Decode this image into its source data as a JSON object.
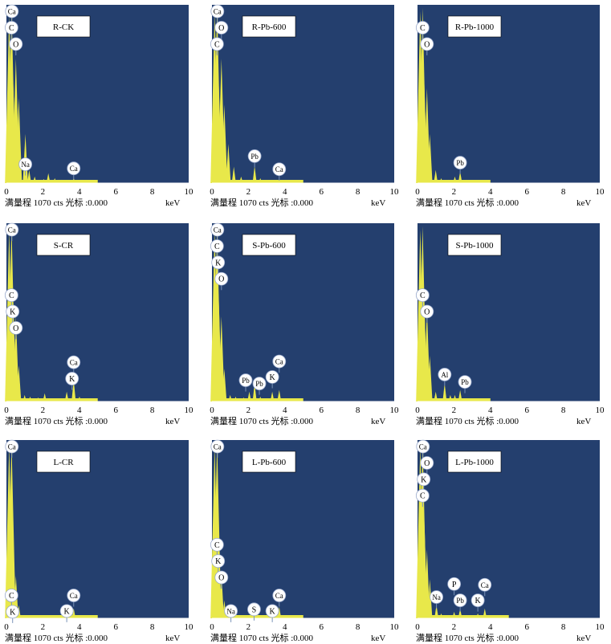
{
  "common": {
    "xlabel": "keV",
    "xlim": [
      0,
      10
    ],
    "xticks": [
      0,
      2,
      4,
      6,
      8,
      10
    ],
    "footer": "满量程 1070 cts  光标 :0.000",
    "full_scale_cts": 1070,
    "cursor": "0.000",
    "colors": {
      "background": "#243f6e",
      "spectrum": "#e8e84a",
      "axis": "#ffffff",
      "label_fill": "#ffffff"
    }
  },
  "chart_data": [
    {
      "type": "area",
      "title": "R-CK",
      "xlabel": "keV",
      "ylabel": "cts",
      "xlim": [
        0,
        10
      ],
      "ylim": [
        0,
        1070
      ],
      "x": [
        0.15,
        0.28,
        0.36,
        0.52,
        0.68,
        1.04,
        1.25,
        1.55,
        2.05,
        2.3,
        2.65,
        3.0,
        3.3,
        3.69,
        4.01
      ],
      "y": [
        1020,
        1070,
        650,
        760,
        520,
        300,
        80,
        40,
        25,
        60,
        30,
        20,
        15,
        30,
        15
      ],
      "annotations": [
        {
          "text": "Ca",
          "x": 0.3,
          "y": 1040
        },
        {
          "text": "C",
          "x": 0.28,
          "y": 940
        },
        {
          "text": "O",
          "x": 0.52,
          "y": 840
        },
        {
          "text": "Na",
          "x": 1.04,
          "y": 105
        },
        {
          "text": "Ca",
          "x": 3.69,
          "y": 80
        }
      ]
    },
    {
      "type": "area",
      "title": "R-Pb-600",
      "xlabel": "keV",
      "ylabel": "cts",
      "xlim": [
        0,
        10
      ],
      "ylim": [
        0,
        1070
      ],
      "x": [
        0.15,
        0.28,
        0.36,
        0.52,
        0.68,
        0.9,
        1.2,
        1.6,
        2.05,
        2.34,
        2.65,
        3.0,
        3.3,
        3.69,
        4.01
      ],
      "y": [
        1040,
        1070,
        640,
        760,
        480,
        240,
        100,
        40,
        20,
        105,
        30,
        20,
        15,
        20,
        12
      ],
      "annotations": [
        {
          "text": "Ca",
          "x": 0.3,
          "y": 1040
        },
        {
          "text": "O",
          "x": 0.52,
          "y": 940
        },
        {
          "text": "C",
          "x": 0.28,
          "y": 840
        },
        {
          "text": "Pb",
          "x": 2.34,
          "y": 155
        },
        {
          "text": "Ca",
          "x": 3.69,
          "y": 75
        }
      ]
    },
    {
      "type": "area",
      "title": "R-Pb-1000",
      "xlabel": "keV",
      "ylabel": "cts",
      "xlim": [
        0,
        10
      ],
      "ylim": [
        0,
        1070
      ],
      "x": [
        0.15,
        0.28,
        0.36,
        0.52,
        0.68,
        1.0,
        1.3,
        1.7,
        2.05,
        2.34,
        2.65,
        3.0
      ],
      "y": [
        1050,
        1070,
        650,
        580,
        300,
        80,
        30,
        20,
        40,
        70,
        20,
        10
      ],
      "annotations": [
        {
          "text": "C",
          "x": 0.28,
          "y": 940
        },
        {
          "text": "O",
          "x": 0.52,
          "y": 840
        },
        {
          "text": "Pb",
          "x": 2.34,
          "y": 115
        }
      ]
    },
    {
      "type": "area",
      "title": "S-CR",
      "xlabel": "keV",
      "ylabel": "cts",
      "xlim": [
        0,
        10
      ],
      "ylim": [
        0,
        1070
      ],
      "x": [
        0.15,
        0.28,
        0.36,
        0.52,
        0.68,
        1.0,
        1.3,
        1.74,
        2.1,
        2.5,
        3.0,
        3.31,
        3.69,
        4.01
      ],
      "y": [
        1040,
        1070,
        650,
        520,
        220,
        40,
        30,
        25,
        50,
        20,
        20,
        60,
        130,
        30
      ],
      "annotations": [
        {
          "text": "Ca",
          "x": 0.3,
          "y": 1040
        },
        {
          "text": "C",
          "x": 0.28,
          "y": 640
        },
        {
          "text": "K",
          "x": 0.34,
          "y": 540
        },
        {
          "text": "O",
          "x": 0.52,
          "y": 440
        },
        {
          "text": "Ca",
          "x": 3.69,
          "y": 230
        },
        {
          "text": "K",
          "x": 3.6,
          "y": 130
        }
      ]
    },
    {
      "type": "area",
      "title": "S-Pb-600",
      "xlabel": "keV",
      "ylabel": "cts",
      "xlim": [
        0,
        10
      ],
      "ylim": [
        0,
        1070
      ],
      "x": [
        0.15,
        0.28,
        0.36,
        0.52,
        0.68,
        1.0,
        1.3,
        1.74,
        2.05,
        2.34,
        2.65,
        3.0,
        3.31,
        3.69,
        4.01
      ],
      "y": [
        1050,
        1070,
        660,
        520,
        200,
        40,
        30,
        25,
        60,
        110,
        30,
        20,
        60,
        70,
        20
      ],
      "annotations": [
        {
          "text": "Ca",
          "x": 0.3,
          "y": 1040
        },
        {
          "text": "C",
          "x": 0.28,
          "y": 940
        },
        {
          "text": "K",
          "x": 0.34,
          "y": 840
        },
        {
          "text": "O",
          "x": 0.52,
          "y": 740
        },
        {
          "text": "Pb",
          "x": 1.85,
          "y": 120
        },
        {
          "text": "Pb",
          "x": 2.6,
          "y": 100
        },
        {
          "text": "K",
          "x": 3.31,
          "y": 140
        },
        {
          "text": "Ca",
          "x": 3.69,
          "y": 235
        }
      ]
    },
    {
      "type": "area",
      "title": "S-Pb-1000",
      "xlabel": "keV",
      "ylabel": "cts",
      "xlim": [
        0,
        10
      ],
      "ylim": [
        0,
        1070
      ],
      "x": [
        0.15,
        0.28,
        0.36,
        0.52,
        0.68,
        1.0,
        1.49,
        1.8,
        2.05,
        2.34,
        2.65,
        3.0
      ],
      "y": [
        1050,
        1070,
        650,
        560,
        280,
        60,
        110,
        40,
        40,
        70,
        20,
        10
      ],
      "annotations": [
        {
          "text": "C",
          "x": 0.28,
          "y": 640
        },
        {
          "text": "O",
          "x": 0.52,
          "y": 540
        },
        {
          "text": "Al",
          "x": 1.49,
          "y": 155
        },
        {
          "text": "Pb",
          "x": 2.6,
          "y": 110
        }
      ]
    },
    {
      "type": "area",
      "title": "L-CR",
      "xlabel": "keV",
      "ylabel": "cts",
      "xlim": [
        0,
        10
      ],
      "ylim": [
        0,
        1070
      ],
      "x": [
        0.15,
        0.28,
        0.36,
        0.52,
        0.68,
        1.0,
        1.5,
        2.0,
        2.5,
        3.0,
        3.31,
        3.69,
        4.01
      ],
      "y": [
        1050,
        1070,
        520,
        260,
        80,
        20,
        15,
        15,
        15,
        20,
        25,
        60,
        15
      ],
      "annotations": [
        {
          "text": "Ca",
          "x": 0.3,
          "y": 1040
        },
        {
          "text": "C",
          "x": 0.28,
          "y": 130
        },
        {
          "text": "K",
          "x": 0.34,
          "y": 30
        },
        {
          "text": "Ca",
          "x": 3.69,
          "y": 130
        },
        {
          "text": "K",
          "x": 3.31,
          "y": 35
        }
      ]
    },
    {
      "type": "area",
      "title": "L-Pb-600",
      "xlabel": "keV",
      "ylabel": "cts",
      "xlim": [
        0,
        10
      ],
      "ylim": [
        0,
        1070
      ],
      "x": [
        0.15,
        0.28,
        0.36,
        0.52,
        0.68,
        1.04,
        1.3,
        1.8,
        2.31,
        2.6,
        3.0,
        3.31,
        3.69,
        4.01
      ],
      "y": [
        1050,
        1070,
        500,
        280,
        110,
        20,
        15,
        15,
        20,
        15,
        15,
        25,
        70,
        15
      ],
      "annotations": [
        {
          "text": "Ca",
          "x": 0.3,
          "y": 1040
        },
        {
          "text": "C",
          "x": 0.28,
          "y": 440
        },
        {
          "text": "K",
          "x": 0.34,
          "y": 340
        },
        {
          "text": "O",
          "x": 0.52,
          "y": 240
        },
        {
          "text": "Na",
          "x": 1.04,
          "y": 35
        },
        {
          "text": "S",
          "x": 2.31,
          "y": 45
        },
        {
          "text": "K",
          "x": 3.31,
          "y": 35
        },
        {
          "text": "Ca",
          "x": 3.69,
          "y": 130
        }
      ]
    },
    {
      "type": "area",
      "title": "L-Pb-1000",
      "xlabel": "keV",
      "ylabel": "cts",
      "xlim": [
        0,
        10
      ],
      "ylim": [
        0,
        1070
      ],
      "x": [
        0.15,
        0.28,
        0.36,
        0.52,
        0.68,
        1.04,
        1.3,
        1.7,
        2.01,
        2.34,
        2.65,
        3.0,
        3.31,
        3.69,
        4.01
      ],
      "y": [
        1050,
        1070,
        640,
        420,
        240,
        80,
        30,
        20,
        40,
        60,
        20,
        15,
        30,
        60,
        15
      ],
      "annotations": [
        {
          "text": "Ca",
          "x": 0.3,
          "y": 1040
        },
        {
          "text": "O",
          "x": 0.52,
          "y": 940
        },
        {
          "text": "K",
          "x": 0.34,
          "y": 840
        },
        {
          "text": "C",
          "x": 0.28,
          "y": 740
        },
        {
          "text": "Na",
          "x": 1.04,
          "y": 120
        },
        {
          "text": "P",
          "x": 2.01,
          "y": 200
        },
        {
          "text": "Pb",
          "x": 2.34,
          "y": 100
        },
        {
          "text": "K",
          "x": 3.31,
          "y": 100
        },
        {
          "text": "Ca",
          "x": 3.69,
          "y": 195
        }
      ]
    }
  ]
}
